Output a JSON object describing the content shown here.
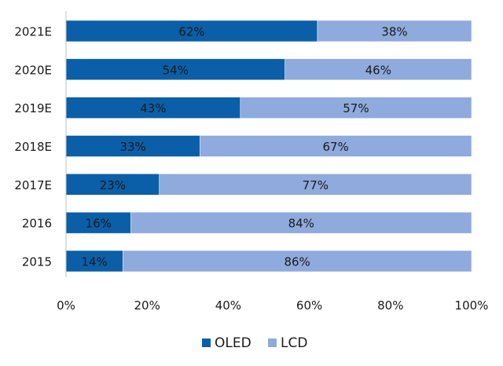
{
  "chart_data": {
    "type": "bar",
    "orientation": "horizontal",
    "stacked": true,
    "categories": [
      "2021E",
      "2020E",
      "2019E",
      "2018E",
      "2017E",
      "2016",
      "2015"
    ],
    "series": [
      {
        "name": "OLED",
        "values": [
          62,
          54,
          43,
          33,
          23,
          16,
          14
        ],
        "color": "#0a5fa8"
      },
      {
        "name": "LCD",
        "values": [
          38,
          46,
          57,
          67,
          77,
          84,
          86
        ],
        "color": "#8faadc"
      }
    ],
    "data_labels": {
      "OLED": [
        "62%",
        "54%",
        "43%",
        "33%",
        "23%",
        "16%",
        "14%"
      ],
      "LCD": [
        "38%",
        "46%",
        "57%",
        "67%",
        "77%",
        "84%",
        "86%"
      ]
    },
    "xlim": [
      0,
      100
    ],
    "xticks": [
      0,
      20,
      40,
      60,
      80,
      100
    ],
    "xtick_labels": [
      "0%",
      "20%",
      "40%",
      "60%",
      "80%",
      "100%"
    ],
    "grid": false,
    "legend": {
      "position": "bottom",
      "entries": [
        "OLED",
        "LCD"
      ]
    },
    "title": "",
    "xlabel": "",
    "ylabel": ""
  },
  "colors": {
    "text": "#1a1a1a",
    "axis": "#bfbfbf",
    "bar_border": "#ffffff"
  }
}
